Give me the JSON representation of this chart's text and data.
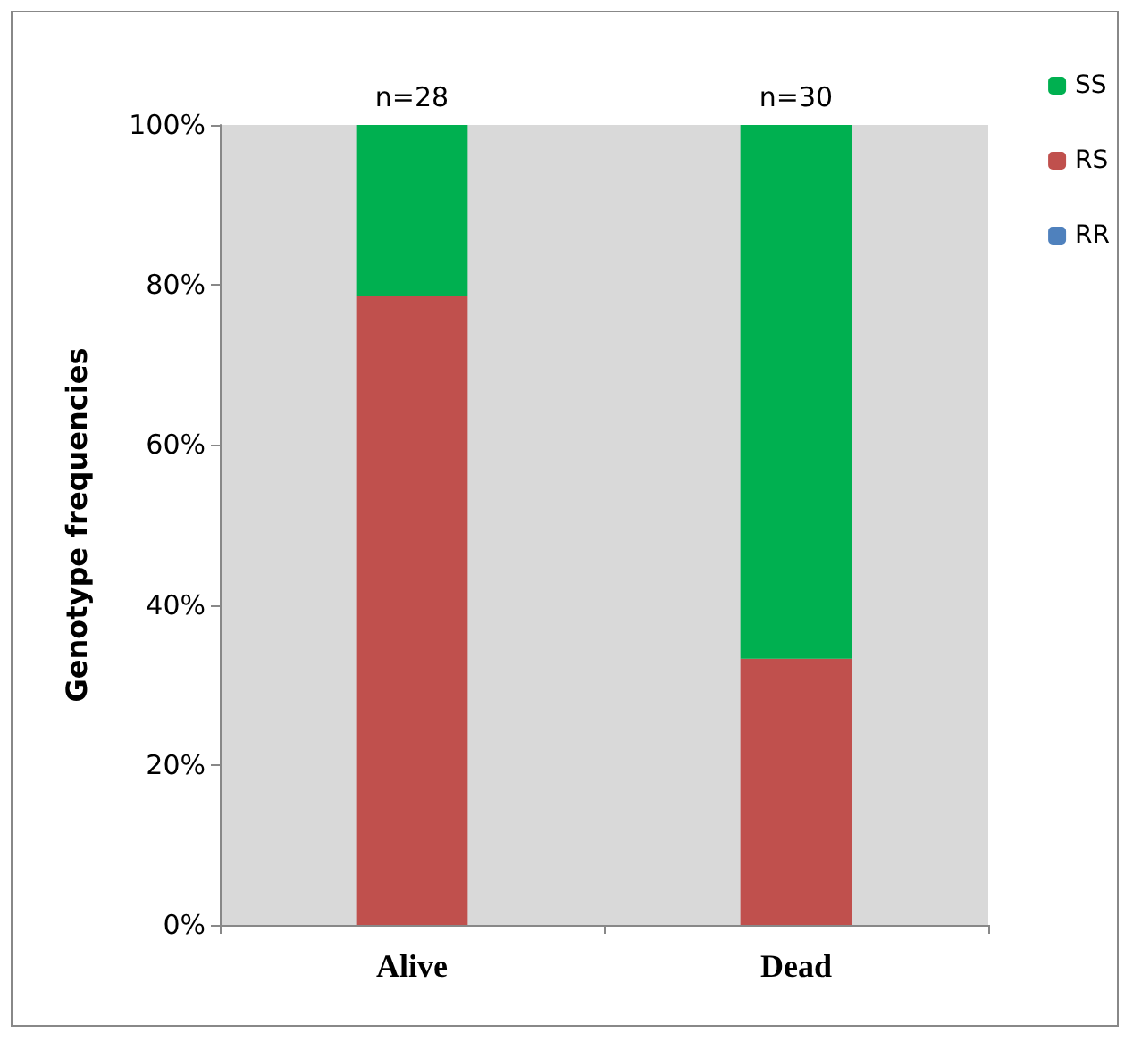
{
  "chart_data": {
    "type": "bar",
    "stacked": true,
    "ylabel": "Genotype frequencies",
    "categories": [
      "Alive",
      "Dead"
    ],
    "series": [
      {
        "name": "RR",
        "color": "#4f81bd",
        "values": [
          0,
          0
        ]
      },
      {
        "name": "RS",
        "color": "#c0504d",
        "values": [
          78.6,
          33.3
        ]
      },
      {
        "name": "SS",
        "color": "#00b050",
        "values": [
          21.4,
          66.7
        ]
      }
    ],
    "ylim": [
      0,
      100
    ],
    "yticks": [
      {
        "value": 0,
        "label": "0%"
      },
      {
        "value": 20,
        "label": "20%"
      },
      {
        "value": 40,
        "label": "40%"
      },
      {
        "value": 60,
        "label": "60%"
      },
      {
        "value": 80,
        "label": "80%"
      },
      {
        "value": 100,
        "label": "100%"
      }
    ],
    "annotations": [
      {
        "text": "n=28",
        "x": "Alive",
        "y": 100
      },
      {
        "text": "n=30",
        "x": "Dead",
        "y": 100
      }
    ],
    "grid": false,
    "legend": "top right"
  }
}
